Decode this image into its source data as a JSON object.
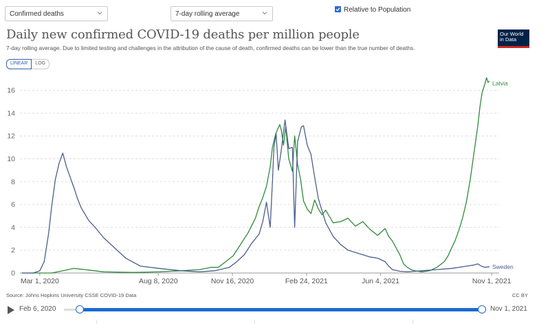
{
  "controls": {
    "metric_select": "Confirmed deaths",
    "interval_select": "7-day rolling average",
    "relative_checkbox": "Relative to Population"
  },
  "header": {
    "title": "Daily new confirmed COVID-19 deaths per million people",
    "subtitle": "7-day rolling average. Due to limited testing and challenges in the attribution of the cause of death, confirmed deaths can be lower than the true number of deaths.",
    "logo_line1": "Our World",
    "logo_line2": "in Data"
  },
  "scale_toggle": {
    "linear": "LINEAR",
    "log": "LOG"
  },
  "footer": {
    "source": "Source: Johns Hopkins University CSSE COVID-19 Data",
    "license": "CC BY"
  },
  "timeline": {
    "start_label": "Feb 6, 2020",
    "end_label": "Nov 1, 2021"
  },
  "colors": {
    "latvia": "#2e8a3c",
    "sweden": "#4a5d8e",
    "grid": "#dddddd",
    "accent": "#1a6bd0"
  },
  "chart_data": {
    "type": "line",
    "title": "Daily new confirmed COVID-19 deaths per million people",
    "xlabel": "",
    "ylabel": "",
    "ylim": [
      0,
      17
    ],
    "yticks": [
      0,
      2,
      4,
      6,
      8,
      10,
      12,
      14,
      16
    ],
    "ytick_labels": [
      "0",
      "2",
      "4",
      "6",
      "8",
      "10",
      "12",
      "14",
      "16"
    ],
    "xlim_days": [
      0,
      631
    ],
    "x_unit": "days since Feb 6, 2020",
    "xticks": [
      {
        "label": "Mar 1, 2020",
        "day": 24
      },
      {
        "label": "Aug 8, 2020",
        "day": 184
      },
      {
        "label": "Nov 16, 2020",
        "day": 284
      },
      {
        "label": "Feb 24, 2021",
        "day": 384
      },
      {
        "label": "Jun 4, 2021",
        "day": 484
      },
      {
        "label": "Nov 1, 2021",
        "day": 634
      }
    ],
    "series": [
      {
        "name": "Latvia",
        "color": "#2e8a3c",
        "days": [
          0,
          40,
          55,
          70,
          85,
          110,
          150,
          185,
          215,
          240,
          255,
          265,
          275,
          285,
          295,
          305,
          315,
          320,
          325,
          330,
          335,
          338,
          342,
          345,
          348,
          350,
          353,
          356,
          360,
          365,
          368,
          372,
          376,
          380,
          385,
          390,
          395,
          400,
          405,
          410,
          420,
          430,
          440,
          450,
          460,
          470,
          480,
          490,
          495,
          500,
          505,
          510,
          515,
          520,
          525,
          530,
          540,
          550,
          560,
          570,
          575,
          580,
          585,
          590,
          595,
          600,
          605,
          610,
          615,
          618,
          621,
          624,
          627,
          629,
          631
        ],
        "values": [
          0,
          0,
          0.2,
          0.4,
          0.3,
          0.1,
          0.05,
          0.1,
          0.2,
          0.3,
          0.5,
          0.5,
          1.0,
          1.5,
          2.5,
          3.5,
          4.8,
          5.8,
          6.6,
          7.6,
          9.3,
          11.0,
          12.1,
          12.6,
          13.0,
          12.5,
          11.2,
          12.8,
          10.0,
          8.9,
          12.0,
          9.5,
          8.2,
          6.3,
          5.6,
          5.2,
          6.4,
          5.6,
          5.1,
          5.5,
          4.4,
          4.5,
          4.8,
          4.1,
          4.5,
          3.8,
          3.3,
          3.9,
          3.2,
          2.8,
          2.2,
          1.6,
          0.8,
          0.5,
          0.3,
          0.2,
          0.1,
          0.2,
          0.5,
          1.0,
          1.5,
          2.2,
          2.9,
          3.8,
          4.9,
          6.3,
          8.2,
          10.5,
          12.8,
          14.5,
          15.8,
          16.4,
          17.1,
          16.7,
          16.8
        ]
      },
      {
        "name": "Sweden",
        "color": "#4a5d8e",
        "days": [
          0,
          15,
          24,
          30,
          36,
          40,
          45,
          50,
          55,
          60,
          65,
          70,
          75,
          80,
          90,
          100,
          110,
          125,
          140,
          160,
          185,
          215,
          240,
          260,
          280,
          290,
          300,
          310,
          320,
          325,
          330,
          335,
          338,
          340,
          343,
          346,
          350,
          355,
          360,
          365,
          368,
          372,
          377,
          380,
          385,
          390,
          395,
          400,
          410,
          420,
          430,
          440,
          450,
          460,
          470,
          480,
          490,
          495,
          500,
          510,
          520,
          530,
          540,
          560,
          580,
          600,
          610,
          615,
          620,
          625,
          631
        ],
        "values": [
          0,
          0,
          0.2,
          1.0,
          3.5,
          5.8,
          8.2,
          9.6,
          10.5,
          9.3,
          8.4,
          7.5,
          6.5,
          5.7,
          4.6,
          3.9,
          3.1,
          2.2,
          1.3,
          0.6,
          0.4,
          0.2,
          0.1,
          0.2,
          0.5,
          1.0,
          1.6,
          2.6,
          3.4,
          4.5,
          6.2,
          4.0,
          7.9,
          11.0,
          12.2,
          9.0,
          10.8,
          13.4,
          10.9,
          11.0,
          4.0,
          11.5,
          12.8,
          12.9,
          11.2,
          10.4,
          8.4,
          6.5,
          4.4,
          3.2,
          2.5,
          2.0,
          1.8,
          1.6,
          1.4,
          1.3,
          1.0,
          0.6,
          0.3,
          0.15,
          0.1,
          0.15,
          0.2,
          0.3,
          0.4,
          0.6,
          0.7,
          0.8,
          0.6,
          0.5,
          0.55
        ]
      }
    ],
    "series_labels": [
      "Latvia",
      "Sweden"
    ]
  }
}
